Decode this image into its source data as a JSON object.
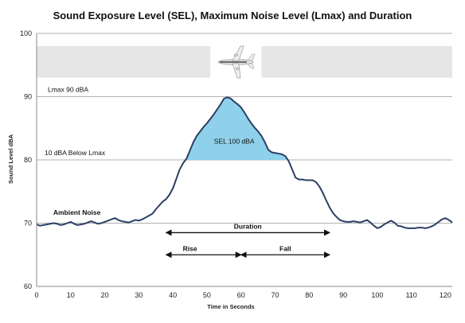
{
  "colors": {
    "line": "#2b3f63",
    "sel_fill": "#8fd1ea",
    "grid": "#b0b0b0",
    "band": "#e6e6e6",
    "arrow": "#111111",
    "aircraft": "#d8d8d8"
  },
  "icons": {
    "aircraft": "airplane-icon"
  },
  "chart_data": {
    "type": "area",
    "title": "Sound Exposure Level (SEL), Maximum Noise Level (Lmax) and Duration",
    "xlabel": "Time in Seconds",
    "ylabel": "Sound Level dBA",
    "xlim": [
      0,
      122
    ],
    "ylim": [
      60,
      100
    ],
    "x_ticks": [
      "0",
      "10",
      "20",
      "30",
      "40",
      "50",
      "60",
      "70",
      "80",
      "90",
      "100",
      "110",
      "120"
    ],
    "y_ticks": [
      "60",
      "70",
      "80",
      "90",
      "100"
    ],
    "grid": "horizontal",
    "series": [
      {
        "x": [
          0,
          1,
          2,
          3,
          4,
          5,
          6,
          7,
          8,
          9,
          10,
          11,
          12,
          13,
          14,
          15,
          16,
          17,
          18,
          19,
          20,
          21,
          22,
          23,
          24,
          25,
          26,
          27,
          28,
          29,
          30,
          31,
          32,
          33,
          34,
          35,
          36,
          37,
          38,
          39,
          40,
          41,
          42,
          43,
          44,
          45,
          46,
          47,
          48,
          49,
          50,
          51,
          52,
          53,
          54,
          55,
          56,
          57,
          58,
          59,
          60,
          61,
          62,
          63,
          64,
          65,
          66,
          67,
          68,
          69,
          70,
          71,
          72,
          73,
          74,
          75,
          76,
          77,
          78,
          79,
          80,
          81,
          82,
          83,
          84,
          85,
          86,
          87,
          88,
          89,
          90,
          91,
          92,
          93,
          94,
          95,
          96,
          97,
          98,
          99,
          100,
          101,
          102,
          103,
          104,
          105,
          106,
          107,
          108,
          109,
          110,
          111,
          112,
          113,
          114,
          115,
          116,
          117,
          118,
          119,
          120,
          121,
          122
        ],
        "values": [
          69.8,
          69.6,
          69.7,
          69.8,
          69.9,
          70.0,
          69.9,
          69.7,
          69.8,
          70.0,
          70.2,
          69.9,
          69.7,
          69.8,
          69.9,
          70.1,
          70.3,
          70.1,
          69.9,
          70.0,
          70.2,
          70.4,
          70.6,
          70.8,
          70.5,
          70.3,
          70.2,
          70.1,
          70.3,
          70.5,
          70.4,
          70.6,
          70.9,
          71.2,
          71.5,
          72.2,
          72.8,
          73.4,
          73.8,
          74.5,
          75.5,
          77.0,
          78.5,
          79.5,
          80.2,
          81.5,
          82.8,
          83.8,
          84.5,
          85.2,
          85.8,
          86.5,
          87.2,
          88.0,
          88.8,
          89.7,
          89.9,
          89.7,
          89.2,
          88.8,
          88.3,
          87.5,
          86.6,
          85.8,
          85.1,
          84.5,
          83.8,
          82.8,
          81.6,
          81.2,
          81.1,
          81.0,
          80.9,
          80.6,
          79.8,
          78.5,
          77.2,
          76.9,
          76.9,
          76.8,
          76.8,
          76.8,
          76.5,
          75.8,
          74.8,
          73.6,
          72.5,
          71.6,
          71.0,
          70.5,
          70.3,
          70.2,
          70.2,
          70.3,
          70.2,
          70.1,
          70.3,
          70.5,
          70.1,
          69.6,
          69.2,
          69.4,
          69.8,
          70.1,
          70.4,
          70.1,
          69.6,
          69.5,
          69.3,
          69.2,
          69.2,
          69.2,
          69.3,
          69.3,
          69.2,
          69.3,
          69.5,
          69.8,
          70.2,
          70.6,
          70.8,
          70.5,
          70.1
        ]
      }
    ],
    "reference_lines": [
      {
        "label": "Lmax 90 dBA",
        "y": 90
      },
      {
        "label": "10 dBA Below Lmax",
        "y": 80
      }
    ],
    "shaded_region": {
      "label": "SEL 100 dBA",
      "x_start": 43,
      "x_end": 74.5,
      "above_y": 80
    },
    "annotations": [
      {
        "label": "Ambient Noise",
        "x": 3,
        "y": 71.3
      },
      {
        "label": "Duration",
        "x_start": 38,
        "x_end": 86,
        "y": 68.5
      },
      {
        "label": "Rise",
        "x_start": 38,
        "x_end": 60,
        "y": 65.0
      },
      {
        "label": "Fall",
        "x_start": 60,
        "x_end": 86,
        "y": 65.0
      }
    ],
    "band": {
      "y_from": 93,
      "y_to": 98,
      "gap_x": [
        51,
        66
      ]
    }
  }
}
